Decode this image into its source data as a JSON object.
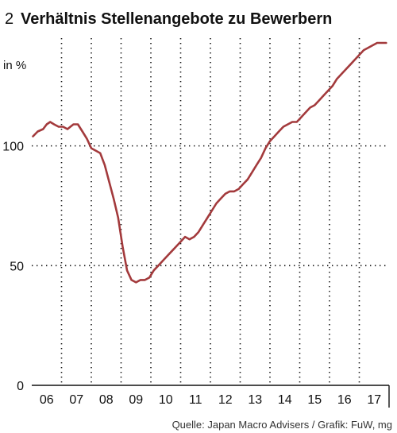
{
  "figure": {
    "number": "2",
    "title": "Verhältnis Stellenangebote zu Bewerbern",
    "source": "Quelle: Japan Macro Advisers / Grafik: FuW, mg"
  },
  "chart_data": {
    "type": "line",
    "title": "Verhältnis Stellenangebote zu Bewerbern",
    "ylabel": "in %",
    "xlabel": "",
    "ylim": [
      0,
      145
    ],
    "yticks": [
      0,
      50,
      100
    ],
    "xlim": [
      2005.5,
      2017.5
    ],
    "x_tick_positions": [
      2006,
      2007,
      2008,
      2009,
      2010,
      2011,
      2012,
      2013,
      2014,
      2015,
      2016,
      2017
    ],
    "x_tick_labels": [
      "06",
      "07",
      "08",
      "09",
      "10",
      "11",
      "12",
      "13",
      "14",
      "15",
      "16",
      "17"
    ],
    "grid": true,
    "line_color": "#a33a3c",
    "series": [
      {
        "name": "",
        "x": [
          2005.54,
          2005.7,
          2005.88,
          2006.0,
          2006.12,
          2006.25,
          2006.4,
          2006.55,
          2006.7,
          2006.8,
          2006.9,
          2007.05,
          2007.2,
          2007.35,
          2007.5,
          2007.65,
          2007.8,
          2007.95,
          2008.1,
          2008.25,
          2008.4,
          2008.55,
          2008.7,
          2008.85,
          2009.0,
          2009.15,
          2009.3,
          2009.45,
          2009.6,
          2009.75,
          2009.9,
          2010.05,
          2010.2,
          2010.35,
          2010.5,
          2010.65,
          2010.8,
          2010.95,
          2011.1,
          2011.25,
          2011.4,
          2011.55,
          2011.7,
          2011.85,
          2012.0,
          2012.15,
          2012.3,
          2012.45,
          2012.6,
          2012.75,
          2012.9,
          2013.05,
          2013.2,
          2013.35,
          2013.5,
          2013.65,
          2013.8,
          2013.95,
          2014.1,
          2014.25,
          2014.4,
          2014.55,
          2014.7,
          2014.85,
          2015.0,
          2015.15,
          2015.3,
          2015.45,
          2015.6,
          2015.75,
          2015.9,
          2016.05,
          2016.2,
          2016.35,
          2016.5,
          2016.65,
          2016.8,
          2016.95,
          2017.1,
          2017.25,
          2017.4
        ],
        "values": [
          104,
          106,
          107,
          109,
          110,
          109,
          108,
          108,
          107,
          108,
          109,
          109,
          106,
          103,
          99,
          98,
          97,
          92,
          85,
          78,
          70,
          58,
          48,
          44,
          43,
          44,
          44,
          45,
          48,
          50,
          52,
          54,
          56,
          58,
          60,
          62,
          61,
          62,
          64,
          67,
          70,
          73,
          76,
          78,
          80,
          81,
          81,
          82,
          84,
          86,
          89,
          92,
          95,
          99,
          102,
          104,
          106,
          108,
          109,
          110,
          110,
          112,
          114,
          116,
          117,
          119,
          121,
          123,
          125,
          128,
          130,
          132,
          134,
          136,
          138,
          140,
          141,
          142,
          143,
          143,
          143
        ]
      }
    ]
  }
}
